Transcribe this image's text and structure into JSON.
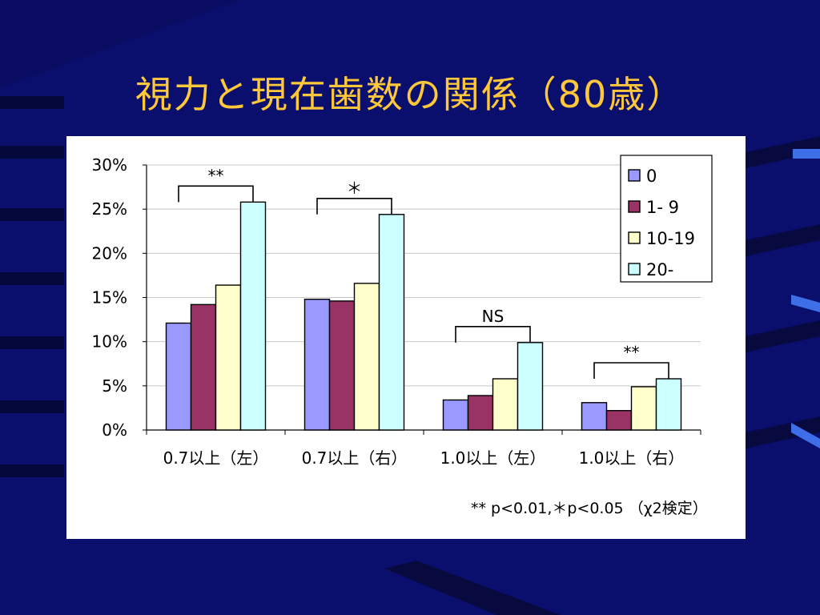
{
  "slide": {
    "title": "視力と現在歯数の関係（80歳）",
    "footnote": "** p<0.01,＊p<0.05 （χ2検定）"
  },
  "colors": {
    "background": "#0a0f6e",
    "title": "#ffc73a",
    "panel": "#ffffff"
  },
  "chart_data": {
    "type": "bar",
    "categories": [
      "0.7以上（左）",
      "0.7以上（右）",
      "1.0以上（左）",
      "1.0以上（右）"
    ],
    "series": [
      {
        "name": "0",
        "color": "#9999ff",
        "values": [
          12.1,
          14.8,
          3.4,
          3.1
        ]
      },
      {
        "name": "1- 9",
        "color": "#993366",
        "values": [
          14.2,
          14.6,
          3.9,
          2.2
        ]
      },
      {
        "name": "10-19",
        "color": "#ffffcc",
        "values": [
          16.4,
          16.6,
          5.8,
          4.9
        ]
      },
      {
        "name": "20-",
        "color": "#ccffff",
        "values": [
          25.8,
          24.4,
          9.9,
          5.8
        ]
      }
    ],
    "ylim": [
      0,
      30
    ],
    "yticks": [
      "0%",
      "5%",
      "10%",
      "15%",
      "20%",
      "25%",
      "30%"
    ],
    "grid": true,
    "legend_position": "top-right",
    "significance": [
      "**",
      "＊",
      "NS",
      "**"
    ]
  }
}
